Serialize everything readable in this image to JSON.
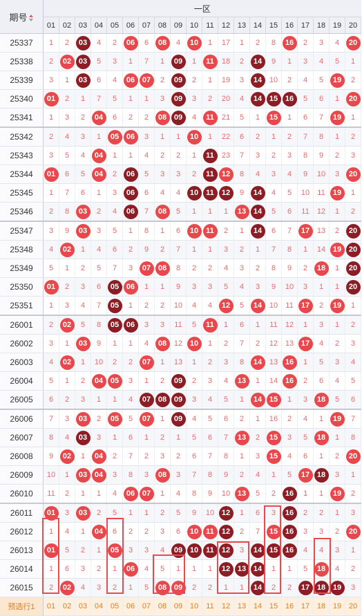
{
  "header": {
    "issue_label": "期号",
    "zone_label": "一区",
    "numbers": [
      "01",
      "02",
      "03",
      "04",
      "05",
      "06",
      "07",
      "08",
      "09",
      "10",
      "11",
      "12",
      "13",
      "14",
      "15",
      "16",
      "17",
      "18",
      "19",
      "20"
    ]
  },
  "groups_start": [
    5,
    10,
    15,
    20,
    25
  ],
  "rows": [
    {
      "issue": "25337",
      "cells": [
        "1",
        "2",
        "03",
        "4",
        "2",
        "06",
        "6",
        "08",
        "4",
        "10",
        "1",
        "17",
        "1",
        "2",
        "8",
        "16",
        "2",
        "3",
        "4",
        "20"
      ],
      "dark": [
        3
      ]
    },
    {
      "issue": "25338",
      "cells": [
        "2",
        "02",
        "03",
        "5",
        "3",
        "1",
        "7",
        "1",
        "09",
        "1",
        "11",
        "18",
        "2",
        "14",
        "9",
        "1",
        "3",
        "4",
        "5",
        "1"
      ],
      "dark": [
        3,
        9,
        14
      ]
    },
    {
      "issue": "25339",
      "cells": [
        "3",
        "1",
        "03",
        "6",
        "4",
        "06",
        "07",
        "2",
        "09",
        "2",
        "1",
        "19",
        "3",
        "14",
        "10",
        "2",
        "4",
        "5",
        "19",
        "2"
      ],
      "dark": [
        3,
        9,
        14
      ]
    },
    {
      "issue": "25340",
      "cells": [
        "01",
        "2",
        "1",
        "7",
        "5",
        "1",
        "1",
        "3",
        "09",
        "3",
        "2",
        "20",
        "4",
        "14",
        "15",
        "16",
        "5",
        "6",
        "1",
        "20"
      ],
      "dark": [
        9,
        14,
        15,
        16
      ]
    },
    {
      "issue": "25341",
      "cells": [
        "1",
        "3",
        "2",
        "04",
        "6",
        "2",
        "2",
        "08",
        "09",
        "4",
        "11",
        "21",
        "5",
        "1",
        "15",
        "1",
        "6",
        "7",
        "19",
        "1"
      ],
      "dark": [
        9
      ]
    },
    {
      "issue": "25342",
      "cells": [
        "2",
        "4",
        "3",
        "1",
        "05",
        "06",
        "3",
        "1",
        "1",
        "10",
        "1",
        "22",
        "6",
        "2",
        "1",
        "2",
        "7",
        "8",
        "1",
        "2"
      ],
      "dark": []
    },
    {
      "issue": "25343",
      "cells": [
        "3",
        "5",
        "4",
        "04",
        "1",
        "1",
        "4",
        "2",
        "2",
        "1",
        "11",
        "23",
        "7",
        "3",
        "2",
        "3",
        "8",
        "9",
        "2",
        "3"
      ],
      "dark": [
        11
      ]
    },
    {
      "issue": "25344",
      "cells": [
        "01",
        "6",
        "5",
        "04",
        "2",
        "06",
        "5",
        "3",
        "3",
        "2",
        "11",
        "12",
        "8",
        "4",
        "3",
        "4",
        "9",
        "10",
        "3",
        "20"
      ],
      "dark": [
        6,
        11
      ]
    },
    {
      "issue": "25345",
      "cells": [
        "1",
        "7",
        "6",
        "1",
        "3",
        "06",
        "6",
        "4",
        "4",
        "10",
        "11",
        "12",
        "9",
        "14",
        "4",
        "5",
        "10",
        "11",
        "19",
        "1"
      ],
      "dark": [
        6,
        10,
        11,
        12,
        14
      ]
    },
    {
      "issue": "25346",
      "cells": [
        "2",
        "8",
        "03",
        "2",
        "4",
        "06",
        "7",
        "08",
        "5",
        "1",
        "1",
        "1",
        "13",
        "14",
        "5",
        "6",
        "11",
        "12",
        "1",
        "2"
      ],
      "dark": [
        6,
        14
      ]
    },
    {
      "issue": "25347",
      "cells": [
        "3",
        "9",
        "03",
        "3",
        "5",
        "1",
        "8",
        "1",
        "6",
        "10",
        "11",
        "2",
        "1",
        "14",
        "6",
        "7",
        "17",
        "13",
        "2",
        "20"
      ],
      "dark": [
        14,
        20
      ]
    },
    {
      "issue": "25348",
      "cells": [
        "4",
        "02",
        "1",
        "4",
        "6",
        "2",
        "9",
        "2",
        "7",
        "1",
        "1",
        "3",
        "2",
        "1",
        "7",
        "8",
        "1",
        "14",
        "19",
        "20"
      ],
      "dark": [
        20
      ]
    },
    {
      "issue": "25349",
      "cells": [
        "5",
        "1",
        "2",
        "5",
        "7",
        "3",
        "07",
        "08",
        "8",
        "2",
        "2",
        "4",
        "3",
        "2",
        "8",
        "9",
        "2",
        "18",
        "1",
        "20"
      ],
      "dark": [
        20
      ]
    },
    {
      "issue": "25350",
      "cells": [
        "01",
        "2",
        "3",
        "6",
        "05",
        "06",
        "1",
        "1",
        "9",
        "3",
        "3",
        "5",
        "4",
        "3",
        "9",
        "10",
        "3",
        "1",
        "1",
        "20"
      ],
      "dark": [
        5,
        20
      ]
    },
    {
      "issue": "25351",
      "cells": [
        "1",
        "3",
        "4",
        "7",
        "05",
        "1",
        "2",
        "2",
        "10",
        "4",
        "4",
        "12",
        "5",
        "14",
        "10",
        "11",
        "17",
        "2",
        "19",
        "1"
      ],
      "dark": [
        5
      ]
    },
    {
      "issue": "26001",
      "cells": [
        "2",
        "02",
        "5",
        "8",
        "05",
        "06",
        "3",
        "3",
        "11",
        "5",
        "11",
        "1",
        "6",
        "1",
        "11",
        "12",
        "1",
        "3",
        "1",
        "2"
      ],
      "dark": [
        5,
        6
      ]
    },
    {
      "issue": "26002",
      "cells": [
        "3",
        "1",
        "03",
        "9",
        "1",
        "1",
        "4",
        "08",
        "12",
        "10",
        "1",
        "2",
        "7",
        "2",
        "12",
        "13",
        "17",
        "4",
        "2",
        "3"
      ],
      "dark": []
    },
    {
      "issue": "26003",
      "cells": [
        "4",
        "02",
        "1",
        "10",
        "2",
        "2",
        "07",
        "1",
        "13",
        "1",
        "2",
        "3",
        "8",
        "14",
        "13",
        "16",
        "1",
        "5",
        "3",
        "4"
      ],
      "dark": []
    },
    {
      "issue": "26004",
      "cells": [
        "5",
        "1",
        "2",
        "04",
        "05",
        "3",
        "1",
        "2",
        "09",
        "2",
        "3",
        "4",
        "13",
        "1",
        "14",
        "16",
        "2",
        "6",
        "4",
        "5"
      ],
      "dark": [
        9
      ]
    },
    {
      "issue": "26005",
      "cells": [
        "6",
        "2",
        "3",
        "1",
        "1",
        "4",
        "07",
        "08",
        "09",
        "3",
        "4",
        "5",
        "1",
        "14",
        "15",
        "1",
        "3",
        "18",
        "5",
        "6"
      ],
      "dark": [
        7,
        8,
        9
      ]
    },
    {
      "issue": "26006",
      "cells": [
        "7",
        "3",
        "03",
        "2",
        "05",
        "5",
        "07",
        "1",
        "09",
        "4",
        "5",
        "6",
        "2",
        "1",
        "16",
        "2",
        "4",
        "1",
        "19",
        "7"
      ],
      "dark": [
        9
      ]
    },
    {
      "issue": "26007",
      "cells": [
        "8",
        "4",
        "03",
        "3",
        "1",
        "6",
        "1",
        "2",
        "1",
        "5",
        "6",
        "7",
        "13",
        "2",
        "15",
        "3",
        "5",
        "18",
        "1",
        "8"
      ],
      "dark": [
        3
      ]
    },
    {
      "issue": "26008",
      "cells": [
        "9",
        "02",
        "1",
        "04",
        "2",
        "7",
        "2",
        "3",
        "2",
        "6",
        "7",
        "8",
        "1",
        "3",
        "15",
        "4",
        "6",
        "1",
        "2",
        "20"
      ],
      "dark": []
    },
    {
      "issue": "26009",
      "cells": [
        "10",
        "1",
        "03",
        "04",
        "3",
        "8",
        "3",
        "08",
        "3",
        "7",
        "8",
        "9",
        "2",
        "4",
        "1",
        "5",
        "17",
        "18",
        "3",
        "1"
      ],
      "dark": [
        18
      ]
    },
    {
      "issue": "26010",
      "cells": [
        "11",
        "2",
        "1",
        "1",
        "4",
        "06",
        "07",
        "1",
        "4",
        "8",
        "9",
        "10",
        "13",
        "5",
        "2",
        "16",
        "1",
        "1",
        "19",
        "2"
      ],
      "dark": [
        16
      ]
    },
    {
      "issue": "26011",
      "cells": [
        "01",
        "3",
        "03",
        "2",
        "5",
        "1",
        "1",
        "2",
        "5",
        "9",
        "10",
        "12",
        "1",
        "6",
        "3",
        "16",
        "2",
        "2",
        "1",
        "3"
      ],
      "dark": [
        12,
        16
      ]
    },
    {
      "issue": "26012",
      "cells": [
        "1",
        "4",
        "1",
        "04",
        "6",
        "2",
        "2",
        "3",
        "6",
        "10",
        "11",
        "12",
        "2",
        "7",
        "15",
        "16",
        "3",
        "3",
        "2",
        "20"
      ],
      "dark": [
        12,
        16
      ]
    },
    {
      "issue": "26013",
      "cells": [
        "01",
        "5",
        "2",
        "1",
        "05",
        "3",
        "3",
        "4",
        "09",
        "10",
        "11",
        "12",
        "3",
        "14",
        "15",
        "16",
        "4",
        "4",
        "3",
        "1"
      ],
      "dark": [
        9,
        10,
        11,
        12,
        14,
        15,
        16
      ]
    },
    {
      "issue": "26014",
      "cells": [
        "1",
        "6",
        "3",
        "2",
        "1",
        "06",
        "4",
        "5",
        "1",
        "1",
        "1",
        "12",
        "13",
        "14",
        "1",
        "1",
        "5",
        "18",
        "4",
        "2"
      ],
      "dark": [
        12,
        13,
        14
      ]
    },
    {
      "issue": "26015",
      "cells": [
        "2",
        "02",
        "4",
        "3",
        "2",
        "1",
        "5",
        "08",
        "09",
        "2",
        "2",
        "1",
        "1",
        "14",
        "2",
        "2",
        "17",
        "18",
        "19",
        "3"
      ],
      "dark": [
        14,
        17,
        18,
        19
      ]
    }
  ],
  "preview": {
    "label": "预选行1",
    "cells": [
      "01",
      "02",
      "03",
      "04",
      "05",
      "06",
      "07",
      "08",
      "09",
      "10",
      "11",
      "12",
      "13",
      "14",
      "15",
      "16",
      "17",
      "18",
      "19",
      "20"
    ]
  },
  "colors": {
    "ball_red": "#e8474b",
    "ball_dark": "#8c1d24",
    "omit_text": "#e86a6b",
    "highlight": "#e84a4e"
  }
}
